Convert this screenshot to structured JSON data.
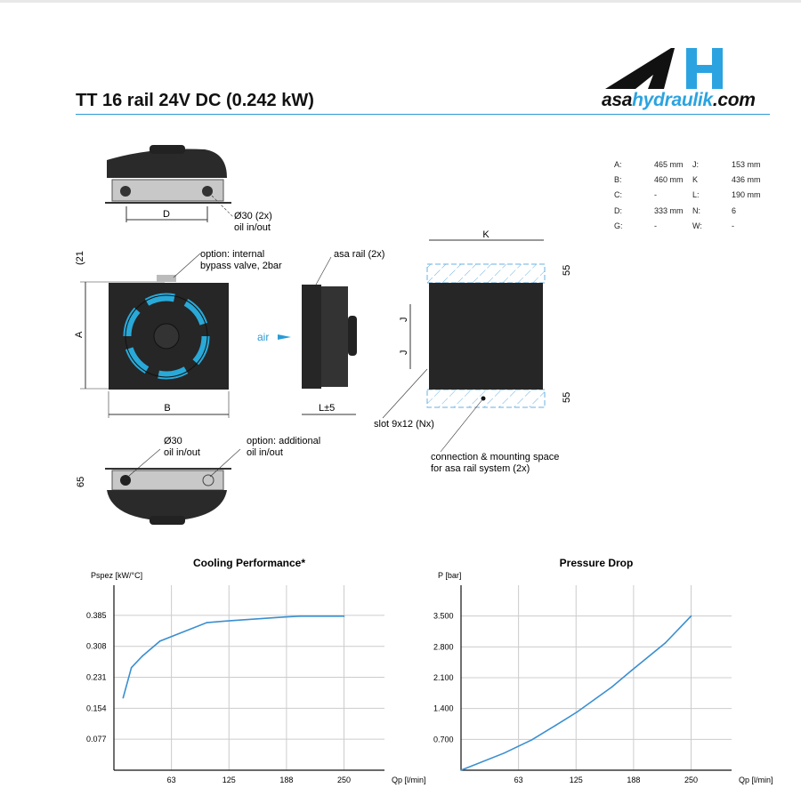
{
  "header": {
    "title": "TT 16 rail 24V DC (0.242 kW)",
    "logo": {
      "prefix": "asa",
      "highlight": "hydraulik",
      "suffix": ".com",
      "mark": "AH"
    },
    "accent_color": "#2b9ad6"
  },
  "specs": [
    {
      "k1": "A:",
      "v1": "465 mm",
      "k2": "J:",
      "v2": "153 mm"
    },
    {
      "k1": "B:",
      "v1": "460 mm",
      "k2": "K",
      "v2": "436 mm"
    },
    {
      "k1": "C:",
      "v1": "-",
      "k2": "L:",
      "v2": "190 mm"
    },
    {
      "k1": "D:",
      "v1": "333 mm",
      "k2": "N:",
      "v2": "6"
    },
    {
      "k1": "G:",
      "v1": "-",
      "k2": "W:",
      "v2": "-"
    }
  ],
  "drawing": {
    "dim_D": "D",
    "oil_label_1": "Ø30 (2x)",
    "oil_label_2": "oil in/out",
    "dim_21": "(21",
    "bypass_1": "option: internal",
    "bypass_2": "bypass valve, 2bar",
    "rail_label": "asa rail (2x)",
    "dim_A": "A",
    "dim_B": "B",
    "air": "air",
    "dim_L": "L±5",
    "dim_K": "K",
    "dim_55_top": "55",
    "dim_55_bottom": "55",
    "dim_J1": "J",
    "dim_J2": "J",
    "slot_label": "slot 9x12 (Nx)",
    "space_1": "connection & mounting space",
    "space_2": "for asa rail system (2x)",
    "bottom_oil_1": "Ø30",
    "bottom_oil_2": "oil in/out",
    "add_oil_1": "option: additional",
    "add_oil_2": "oil in/out",
    "dim_65": "65",
    "fan_color": "#29a9d8"
  },
  "chart_data": [
    {
      "type": "line",
      "title": "Cooling Performance*",
      "ylabel": "Pspez [kW/°C]",
      "xlabel": "Qp [l/min]",
      "xticks": [
        "63",
        "125",
        "188",
        "250"
      ],
      "xtick_values": [
        62.5,
        125,
        187.5,
        250
      ],
      "yticks": [
        "0.077",
        "0.154",
        "0.231",
        "0.308",
        "0.385"
      ],
      "ytick_values": [
        0.077,
        0.154,
        0.231,
        0.308,
        0.385
      ],
      "xlim": [
        0,
        294
      ],
      "ylim": [
        0,
        0.46
      ],
      "grid": true,
      "color": "#3a8fd0",
      "x": [
        10,
        19,
        31,
        50,
        101,
        128,
        186,
        202,
        250
      ],
      "y": [
        0.18,
        0.255,
        0.284,
        0.321,
        0.367,
        0.372,
        0.381,
        0.383,
        0.383
      ]
    },
    {
      "type": "line",
      "title": "Pressure Drop",
      "ylabel": "P [bar]",
      "xlabel": "Qp [l/min]",
      "xticks": [
        "63",
        "125",
        "188",
        "250"
      ],
      "xtick_values": [
        62.5,
        125,
        187.5,
        250
      ],
      "yticks": [
        "0.700",
        "1.400",
        "2.100",
        "2.800",
        "3.500"
      ],
      "ytick_values": [
        0.7,
        1.4,
        2.1,
        2.8,
        3.5
      ],
      "xlim": [
        0,
        294
      ],
      "ylim": [
        0,
        4.2
      ],
      "grid": true,
      "color": "#3a8fd0",
      "x": [
        0,
        47,
        77,
        103,
        126,
        164,
        185,
        222,
        250
      ],
      "y": [
        0,
        0.39,
        0.69,
        1.02,
        1.32,
        1.89,
        2.26,
        2.89,
        3.5
      ]
    }
  ]
}
